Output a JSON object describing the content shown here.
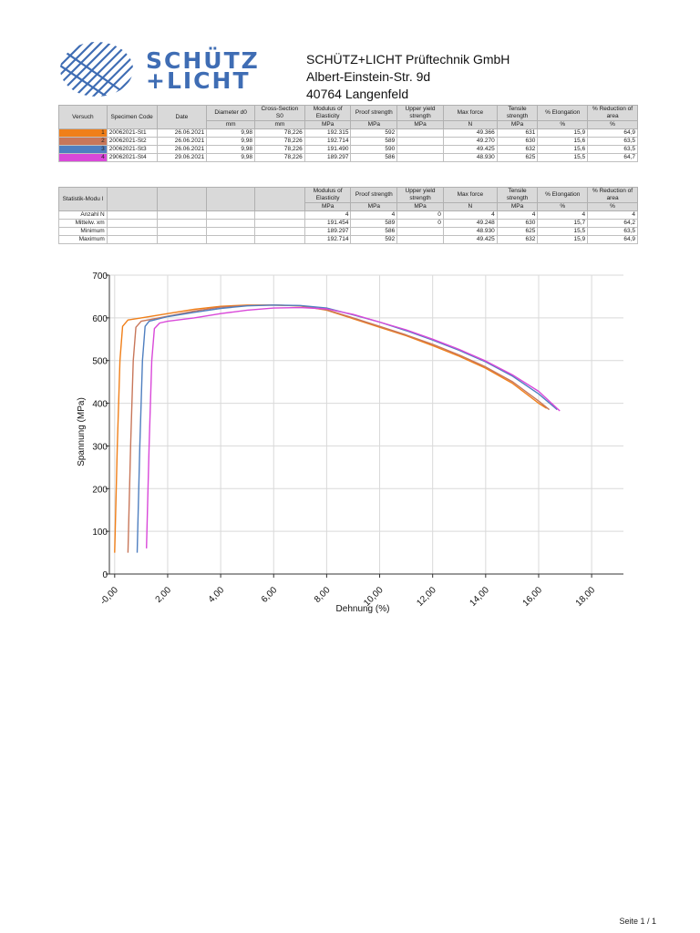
{
  "company": {
    "logo_line1": "SCHÜTZ",
    "logo_line2": "+LICHT",
    "name": "SCHÜTZ+LICHT Prüftechnik GmbH",
    "street": "Albert-Einstein-Str. 9d",
    "city": "40764 Langenfeld",
    "brand_color": "#3f6db4"
  },
  "results_table": {
    "headers": {
      "versuch": "Versuch",
      "specimen": "Specimen Code",
      "date": "Date",
      "diameter": "Diameter d0",
      "diameter_unit": "mm",
      "cross": "Cross-Section S0",
      "cross_unit": "mm",
      "modulus": "Modulus of Elasticity",
      "modulus_unit": "MPa",
      "proof": "Proof strength",
      "proof_unit": "MPa",
      "upper": "Upper yield strength",
      "upper_unit": "MPa",
      "maxforce": "Max force",
      "maxforce_unit": "N",
      "tensile": "Tensile strength",
      "tensile_unit": "MPa",
      "elong": "% Elongation",
      "elong_unit": "%",
      "reduction": "% Reduction of area",
      "reduction_unit": "%"
    },
    "rows": [
      {
        "n": "1",
        "code": "20062021-St1",
        "date": "26.06.2021",
        "d0": "9,98",
        "s0": "78,226",
        "mod": "192.315",
        "proof": "592",
        "upper": "",
        "force": "49.366",
        "tens": "631",
        "elong": "15,9",
        "red": "64,9",
        "color": "#f07f19"
      },
      {
        "n": "2",
        "code": "20062021-St2",
        "date": "26.06.2021",
        "d0": "9,98",
        "s0": "78,226",
        "mod": "192.714",
        "proof": "589",
        "upper": "",
        "force": "49.270",
        "tens": "630",
        "elong": "15,6",
        "red": "63,5",
        "color": "#c8775a"
      },
      {
        "n": "3",
        "code": "20062021-St3",
        "date": "26.06.2021",
        "d0": "9,98",
        "s0": "78,226",
        "mod": "191.490",
        "proof": "590",
        "upper": "",
        "force": "49.425",
        "tens": "632",
        "elong": "15,6",
        "red": "63,5",
        "color": "#4f7fc0"
      },
      {
        "n": "4",
        "code": "29062021-St4",
        "date": "29.06.2021",
        "d0": "9,98",
        "s0": "78,226",
        "mod": "189.297",
        "proof": "586",
        "upper": "",
        "force": "48.930",
        "tens": "625",
        "elong": "15,5",
        "red": "64,7",
        "color": "#d948d9"
      }
    ]
  },
  "stats_table": {
    "header_label": "Statistik-Modu l",
    "rows": [
      {
        "label": "Anzahl N",
        "mod": "4",
        "proof": "4",
        "upper": "0",
        "force": "4",
        "tens": "4",
        "elong": "4",
        "red": "4"
      },
      {
        "label": "Mittelw. xm",
        "mod": "191.454",
        "proof": "589",
        "upper": "0",
        "force": "49.248",
        "tens": "630",
        "elong": "15,7",
        "red": "64,2"
      },
      {
        "label": "Minimum",
        "mod": "189.297",
        "proof": "586",
        "upper": "",
        "force": "48.930",
        "tens": "625",
        "elong": "15,5",
        "red": "63,5"
      },
      {
        "label": "Maximum",
        "mod": "192.714",
        "proof": "592",
        "upper": "",
        "force": "49.425",
        "tens": "632",
        "elong": "15,9",
        "red": "64,9"
      }
    ]
  },
  "chart_data": {
    "type": "line",
    "xlabel": "Dehnung (%)",
    "ylabel": "Spannung (MPa)",
    "xlim": [
      -0.2,
      19.2
    ],
    "ylim": [
      0,
      700
    ],
    "x_ticks": [
      0,
      2,
      4,
      6,
      8,
      10,
      12,
      14,
      16,
      18
    ],
    "x_tick_labels": [
      "-0,00",
      "2,00",
      "4,00",
      "6,00",
      "8,00",
      "10,00",
      "12,00",
      "14,00",
      "16,00",
      "18,00"
    ],
    "y_ticks": [
      0,
      100,
      200,
      300,
      400,
      500,
      600,
      700
    ],
    "y_tick_labels": [
      "0",
      "100",
      "200",
      "300",
      "400",
      "500",
      "600",
      "700"
    ],
    "grid": true,
    "series": [
      {
        "color": "#f07f19",
        "points": [
          [
            0.0,
            50
          ],
          [
            0.1,
            300
          ],
          [
            0.2,
            500
          ],
          [
            0.3,
            580
          ],
          [
            0.5,
            595
          ],
          [
            1.0,
            600
          ],
          [
            2.0,
            610
          ],
          [
            3.0,
            620
          ],
          [
            4.0,
            627
          ],
          [
            5.0,
            630
          ],
          [
            6.0,
            630
          ],
          [
            7.0,
            628
          ],
          [
            8.0,
            618
          ],
          [
            9.0,
            598
          ],
          [
            10.0,
            578
          ],
          [
            11.0,
            558
          ],
          [
            12.0,
            535
          ],
          [
            13.0,
            510
          ],
          [
            14.0,
            482
          ],
          [
            15.0,
            447
          ],
          [
            16.0,
            400
          ],
          [
            16.3,
            388
          ]
        ]
      },
      {
        "color": "#c8775a",
        "points": [
          [
            0.5,
            50
          ],
          [
            0.6,
            300
          ],
          [
            0.7,
            500
          ],
          [
            0.8,
            578
          ],
          [
            1.0,
            592
          ],
          [
            1.5,
            598
          ],
          [
            2.0,
            604
          ],
          [
            3.0,
            616
          ],
          [
            4.0,
            625
          ],
          [
            5.0,
            629
          ],
          [
            6.0,
            630
          ],
          [
            7.0,
            628
          ],
          [
            8.0,
            619
          ],
          [
            9.0,
            600
          ],
          [
            10.0,
            580
          ],
          [
            11.0,
            560
          ],
          [
            12.0,
            538
          ],
          [
            13.0,
            513
          ],
          [
            14.0,
            485
          ],
          [
            15.0,
            451
          ],
          [
            16.0,
            405
          ],
          [
            16.4,
            385
          ]
        ]
      },
      {
        "color": "#4f7fc0",
        "points": [
          [
            0.85,
            50
          ],
          [
            0.95,
            300
          ],
          [
            1.05,
            500
          ],
          [
            1.15,
            580
          ],
          [
            1.3,
            592
          ],
          [
            2.0,
            603
          ],
          [
            3.0,
            613
          ],
          [
            4.0,
            622
          ],
          [
            5.0,
            628
          ],
          [
            6.0,
            630
          ],
          [
            7.0,
            629
          ],
          [
            8.0,
            623
          ],
          [
            9.0,
            607
          ],
          [
            10.0,
            590
          ],
          [
            11.0,
            570
          ],
          [
            12.0,
            548
          ],
          [
            13.0,
            524
          ],
          [
            14.0,
            497
          ],
          [
            15.0,
            464
          ],
          [
            16.0,
            422
          ],
          [
            16.7,
            385
          ]
        ]
      },
      {
        "color": "#d948d9",
        "points": [
          [
            1.2,
            60
          ],
          [
            1.3,
            300
          ],
          [
            1.4,
            500
          ],
          [
            1.5,
            575
          ],
          [
            1.7,
            588
          ],
          [
            2.0,
            592
          ],
          [
            3.0,
            600
          ],
          [
            4.0,
            610
          ],
          [
            5.0,
            618
          ],
          [
            6.0,
            623
          ],
          [
            7.0,
            624
          ],
          [
            8.0,
            621
          ],
          [
            9.0,
            608
          ],
          [
            10.0,
            590
          ],
          [
            11.0,
            572
          ],
          [
            12.0,
            550
          ],
          [
            13.0,
            526
          ],
          [
            14.0,
            499
          ],
          [
            15.0,
            467
          ],
          [
            16.0,
            428
          ],
          [
            16.8,
            382
          ]
        ]
      }
    ]
  },
  "footer": {
    "page": "Seite 1 / 1"
  }
}
